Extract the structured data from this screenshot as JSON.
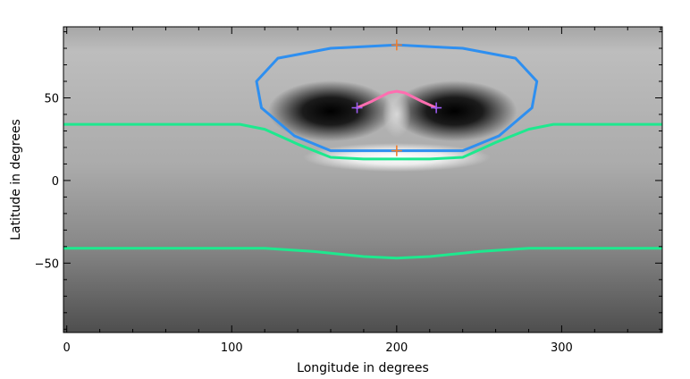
{
  "chart_data": {
    "type": "heatmap",
    "xlabel": "Longitude in degrees",
    "ylabel": "Latitude in degrees",
    "xlim": [
      -2,
      361
    ],
    "ylim": [
      -92,
      93
    ],
    "xticks": [
      0,
      100,
      200,
      300
    ],
    "yticks": [
      -50,
      0,
      50
    ],
    "background": {
      "description": "grayscale field, light at north pole fading to dark at south pole",
      "features": [
        {
          "kind": "dark-blob",
          "lon": 160,
          "lat": 42
        },
        {
          "kind": "dark-blob",
          "lon": 235,
          "lat": 42
        },
        {
          "kind": "bright-band",
          "lon": 200,
          "lat": 14
        }
      ]
    },
    "series": [
      {
        "color": "#2e8ff0",
        "style": "closed-loop",
        "x": [
          200,
          240,
          272,
          285,
          282,
          262,
          240,
          200,
          160,
          138,
          118,
          115,
          128,
          160,
          200
        ],
        "y": [
          82,
          80,
          74,
          60,
          44,
          27,
          18,
          18,
          18,
          27,
          44,
          60,
          74,
          80,
          82
        ]
      },
      {
        "color": "#1ee88e",
        "x": [
          -2,
          90,
          105,
          120,
          140,
          160,
          180,
          200,
          220,
          240,
          260,
          280,
          295,
          361
        ],
        "y": [
          34,
          34,
          34,
          31,
          22,
          14,
          13,
          13,
          13,
          14,
          23,
          31,
          34,
          34
        ]
      },
      {
        "color": "#1ee88e",
        "x": [
          -2,
          90,
          120,
          150,
          180,
          200,
          220,
          250,
          280,
          310,
          361
        ],
        "y": [
          -41,
          -41,
          -41,
          -43,
          -46,
          -47,
          -46,
          -43,
          -41,
          -41,
          -41
        ]
      },
      {
        "color": "#ff6eb0",
        "x": [
          176,
          185,
          195,
          200,
          205,
          215,
          224
        ],
        "y": [
          44,
          48,
          53,
          54,
          53,
          48,
          44
        ]
      }
    ],
    "markers": [
      {
        "symbol": "+",
        "color": "#f07d2c",
        "x": 200,
        "y": 82
      },
      {
        "symbol": "+",
        "color": "#f07d2c",
        "x": 200,
        "y": 18
      },
      {
        "symbol": "+",
        "color": "#9b5cf0",
        "x": 176,
        "y": 44
      },
      {
        "symbol": "+",
        "color": "#9b5cf0",
        "x": 224,
        "y": 44
      }
    ]
  }
}
